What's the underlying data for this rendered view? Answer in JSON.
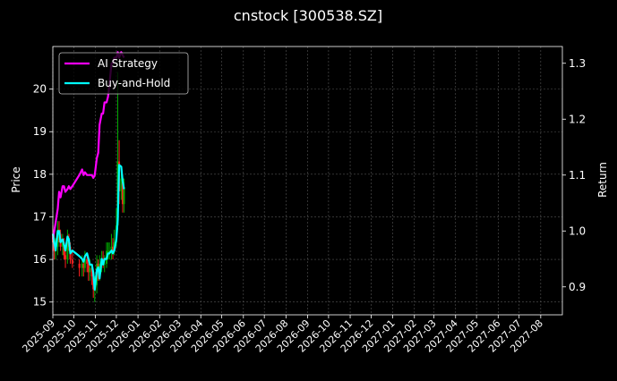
{
  "chart_data": {
    "type": "line",
    "title": "cnstock [300538.SZ]",
    "ylabel_left": "Price",
    "ylabel_right": "Return",
    "xlabel": "",
    "ylim_left": [
      14.7,
      21.0
    ],
    "ylim_right": [
      0.85,
      1.33
    ],
    "xlim": [
      "2025-09-01",
      "2027-09-01"
    ],
    "grid": true,
    "legend_position": "upper-left",
    "x_ticks": [
      "2025-09",
      "2025-10",
      "2025-11",
      "2025-12",
      "2026-01",
      "2026-02",
      "2026-03",
      "2026-04",
      "2026-05",
      "2026-06",
      "2026-07",
      "2026-08",
      "2026-09",
      "2026-10",
      "2026-11",
      "2026-12",
      "2027-01",
      "2027-02",
      "2027-03",
      "2027-04",
      "2027-05",
      "2027-06",
      "2027-07",
      "2027-08"
    ],
    "y_ticks_left": [
      15,
      16,
      17,
      18,
      19,
      20
    ],
    "y_ticks_right": [
      0.9,
      1.0,
      1.1,
      1.2,
      1.3
    ],
    "series": [
      {
        "name": "AI Strategy",
        "axis": "right",
        "color": "#ff00ff",
        "x": [
          "2025-09-01",
          "2025-09-03",
          "2025-09-05",
          "2025-09-08",
          "2025-09-10",
          "2025-09-12",
          "2025-09-15",
          "2025-09-17",
          "2025-09-19",
          "2025-09-22",
          "2025-09-24",
          "2025-09-26",
          "2025-09-29",
          "2025-10-09",
          "2025-10-13",
          "2025-10-15",
          "2025-10-17",
          "2025-10-20",
          "2025-10-22",
          "2025-10-24",
          "2025-10-27",
          "2025-10-29",
          "2025-10-31",
          "2025-11-03",
          "2025-11-05",
          "2025-11-07",
          "2025-11-10",
          "2025-11-12",
          "2025-11-14",
          "2025-11-17",
          "2025-11-19",
          "2025-11-21",
          "2025-11-24",
          "2025-11-26",
          "2025-11-28",
          "2025-12-01",
          "2025-12-03",
          "2025-12-05",
          "2025-12-08",
          "2025-12-10",
          "2025-12-12"
        ],
        "values": [
          0.985,
          1.0,
          1.015,
          1.04,
          1.07,
          1.06,
          1.08,
          1.08,
          1.07,
          1.075,
          1.08,
          1.075,
          1.08,
          1.1,
          1.11,
          1.1,
          1.105,
          1.1,
          1.1,
          1.1,
          1.1,
          1.095,
          1.1,
          1.13,
          1.14,
          1.19,
          1.21,
          1.21,
          1.23,
          1.23,
          1.24,
          1.26,
          1.3,
          1.3,
          1.31,
          1.31,
          1.32,
          1.31,
          1.32,
          1.315,
          1.31
        ]
      },
      {
        "name": "Buy-and-Hold",
        "axis": "right",
        "color": "#00ffff",
        "x": [
          "2025-09-01",
          "2025-09-03",
          "2025-09-05",
          "2025-09-08",
          "2025-09-10",
          "2025-09-12",
          "2025-09-15",
          "2025-09-17",
          "2025-09-19",
          "2025-09-22",
          "2025-09-24",
          "2025-09-26",
          "2025-09-29",
          "2025-10-09",
          "2025-10-13",
          "2025-10-15",
          "2025-10-17",
          "2025-10-20",
          "2025-10-22",
          "2025-10-24",
          "2025-10-27",
          "2025-10-29",
          "2025-10-31",
          "2025-11-03",
          "2025-11-05",
          "2025-11-07",
          "2025-11-10",
          "2025-11-12",
          "2025-11-14",
          "2025-11-17",
          "2025-11-19",
          "2025-11-21",
          "2025-11-24",
          "2025-11-26",
          "2025-11-28",
          "2025-12-01",
          "2025-12-03",
          "2025-12-05",
          "2025-12-08",
          "2025-12-10",
          "2025-12-12"
        ],
        "values": [
          0.995,
          0.98,
          0.965,
          1.0,
          1.0,
          0.98,
          0.985,
          0.975,
          0.965,
          0.99,
          0.985,
          0.96,
          0.965,
          0.955,
          0.95,
          0.945,
          0.955,
          0.96,
          0.95,
          0.94,
          0.94,
          0.925,
          0.895,
          0.93,
          0.935,
          0.915,
          0.95,
          0.94,
          0.95,
          0.95,
          0.96,
          0.96,
          0.965,
          0.96,
          0.965,
          0.985,
          1.02,
          1.118,
          1.115,
          1.09,
          1.075
        ]
      }
    ],
    "candlesticks": {
      "axis": "left",
      "up_color": "#00aa00",
      "down_color": "#ff2020",
      "x": [
        "2025-09-01",
        "2025-09-03",
        "2025-09-05",
        "2025-09-08",
        "2025-09-10",
        "2025-09-12",
        "2025-09-15",
        "2025-09-17",
        "2025-09-19",
        "2025-09-22",
        "2025-09-24",
        "2025-09-26",
        "2025-09-29",
        "2025-10-09",
        "2025-10-13",
        "2025-10-15",
        "2025-10-17",
        "2025-10-20",
        "2025-10-22",
        "2025-10-24",
        "2025-10-27",
        "2025-10-29",
        "2025-10-31",
        "2025-11-03",
        "2025-11-05",
        "2025-11-07",
        "2025-11-10",
        "2025-11-12",
        "2025-11-14",
        "2025-11-17",
        "2025-11-19",
        "2025-11-21",
        "2025-11-24",
        "2025-11-26",
        "2025-11-28",
        "2025-12-01",
        "2025-12-03",
        "2025-12-05",
        "2025-12-08",
        "2025-12-10",
        "2025-12-12"
      ],
      "open": [
        16.6,
        16.4,
        16.2,
        16.3,
        16.7,
        16.6,
        16.3,
        16.4,
        16.1,
        16.0,
        16.5,
        16.3,
        16.0,
        15.9,
        15.8,
        15.9,
        15.8,
        16.0,
        15.9,
        15.7,
        15.8,
        15.6,
        15.3,
        15.4,
        15.9,
        15.7,
        15.9,
        16.0,
        15.9,
        15.9,
        16.2,
        16.2,
        16.2,
        16.3,
        16.2,
        16.4,
        16.8,
        18.3,
        17.6,
        17.9,
        17.3
      ],
      "close": [
        16.4,
        16.2,
        16.3,
        16.7,
        16.6,
        16.3,
        16.4,
        16.1,
        16.0,
        16.5,
        16.3,
        16.0,
        15.9,
        15.8,
        15.9,
        15.8,
        16.0,
        15.9,
        15.7,
        15.8,
        15.6,
        15.3,
        15.4,
        15.9,
        15.7,
        15.9,
        16.0,
        15.9,
        15.9,
        16.2,
        16.2,
        16.2,
        16.3,
        16.2,
        16.4,
        16.8,
        18.3,
        17.6,
        17.9,
        17.3,
        17.7
      ],
      "high": [
        16.8,
        16.6,
        16.5,
        16.9,
        16.9,
        16.7,
        16.6,
        16.5,
        16.3,
        16.7,
        16.6,
        16.4,
        16.2,
        16.0,
        16.1,
        16.0,
        16.2,
        16.1,
        16.0,
        16.0,
        15.9,
        15.7,
        15.6,
        16.1,
        16.0,
        16.1,
        16.2,
        16.2,
        16.1,
        16.4,
        16.4,
        16.4,
        16.6,
        16.5,
        16.7,
        17.2,
        20.4,
        18.8,
        18.2,
        18.0,
        17.9
      ],
      "low": [
        16.2,
        16.0,
        16.0,
        16.1,
        16.4,
        16.2,
        16.1,
        16.0,
        15.8,
        15.9,
        16.2,
        15.9,
        15.8,
        15.6,
        15.6,
        15.6,
        15.7,
        15.7,
        15.5,
        15.5,
        15.4,
        15.1,
        15.0,
        15.2,
        15.5,
        15.5,
        15.7,
        15.8,
        15.7,
        15.8,
        16.0,
        16.0,
        16.0,
        16.0,
        16.1,
        16.3,
        16.7,
        17.3,
        17.4,
        17.1,
        17.1
      ]
    }
  }
}
